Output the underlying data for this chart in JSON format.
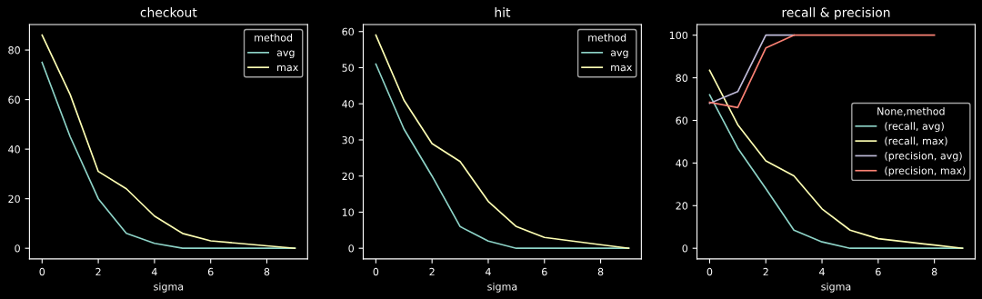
{
  "chart_data": [
    {
      "type": "line",
      "title": "checkout",
      "xlabel": "sigma",
      "x": [
        0,
        1,
        2,
        3,
        4,
        5,
        6,
        7,
        8,
        9
      ],
      "xlim": [
        -0.45,
        9.45
      ],
      "xticks": [
        0,
        2,
        4,
        6,
        8
      ],
      "ylim": [
        -4.3,
        90.3
      ],
      "yticks": [
        0,
        20,
        40,
        60,
        80
      ],
      "legend": "top right",
      "legend_title": "method",
      "grid": false,
      "series": [
        {
          "name": "avg",
          "color": "#8dd3c7",
          "values": [
            75,
            45,
            20,
            6,
            2,
            0,
            0,
            0,
            0,
            0
          ]
        },
        {
          "name": "max",
          "color": "#feffb3",
          "values": [
            86,
            62,
            31,
            24,
            13,
            6,
            3,
            2,
            1,
            0
          ]
        }
      ]
    },
    {
      "type": "line",
      "title": "hit",
      "xlabel": "sigma",
      "x": [
        0,
        1,
        2,
        3,
        4,
        5,
        6,
        7,
        8,
        9
      ],
      "xlim": [
        -0.45,
        9.45
      ],
      "xticks": [
        0,
        2,
        4,
        6,
        8
      ],
      "ylim": [
        -2.95,
        61.95
      ],
      "yticks": [
        0,
        10,
        20,
        30,
        40,
        50,
        60
      ],
      "legend": "top right",
      "legend_title": "method",
      "grid": false,
      "series": [
        {
          "name": "avg",
          "color": "#8dd3c7",
          "values": [
            51,
            33,
            20,
            6,
            2,
            0,
            0,
            0,
            0,
            0
          ]
        },
        {
          "name": "max",
          "color": "#feffb3",
          "values": [
            59,
            41,
            29,
            24,
            13,
            6,
            3,
            2,
            1,
            0
          ]
        }
      ]
    },
    {
      "type": "line",
      "title": "recall & precision",
      "xlabel": "sigma",
      "x": [
        0,
        1,
        2,
        3,
        4,
        5,
        6,
        7,
        8,
        9
      ],
      "xlim": [
        -0.45,
        9.45
      ],
      "xticks": [
        0,
        2,
        4,
        6,
        8
      ],
      "ylim": [
        -5,
        105
      ],
      "yticks": [
        0,
        20,
        40,
        60,
        80,
        100
      ],
      "legend": "right",
      "legend_title": "None,method",
      "grid": false,
      "series": [
        {
          "name": "(recall, avg)",
          "color": "#8dd3c7",
          "values": [
            72,
            47,
            28,
            8.5,
            3,
            0,
            0,
            0,
            0,
            0
          ]
        },
        {
          "name": "(recall, max)",
          "color": "#feffb3",
          "values": [
            83.5,
            58,
            41,
            34,
            18.5,
            8.5,
            4.5,
            3,
            1.5,
            0
          ]
        },
        {
          "name": "(precision, avg)",
          "color": "#bfbbd9",
          "values": [
            68,
            73.5,
            100,
            100,
            null,
            null,
            null,
            null,
            null,
            null
          ]
        },
        {
          "name": "(precision, max)",
          "color": "#fa8174",
          "values": [
            68.5,
            66,
            94,
            100,
            100,
            100,
            100,
            100,
            100,
            null
          ]
        }
      ]
    }
  ]
}
